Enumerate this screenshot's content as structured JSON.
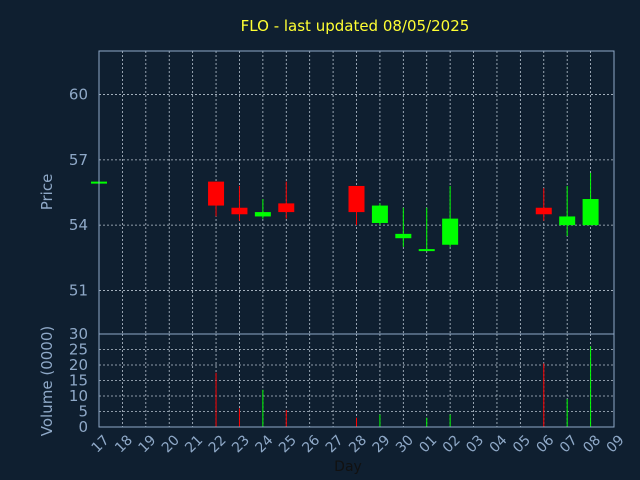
{
  "chart_data": {
    "type": "candlestick",
    "title": "FLO - last updated 08/05/2025",
    "xlabel": "Day",
    "price_panel": {
      "ylabel": "Price",
      "ylim": [
        49,
        62
      ],
      "yticks": [
        51,
        54,
        57,
        60
      ]
    },
    "volume_panel": {
      "ylabel": "Volume (0000)",
      "ylim": [
        0,
        30
      ],
      "yticks": [
        0,
        5,
        10,
        15,
        20,
        25,
        30
      ]
    },
    "categories": [
      "17",
      "18",
      "19",
      "20",
      "21",
      "22",
      "23",
      "24",
      "25",
      "26",
      "27",
      "28",
      "29",
      "30",
      "01",
      "02",
      "03",
      "04",
      "05",
      "06",
      "07",
      "08",
      "09"
    ],
    "candles": [
      {
        "day": "17",
        "open": 56.0,
        "close": 56.0,
        "high": 56.0,
        "low": 56.0,
        "volume": 0
      },
      {
        "day": "22",
        "open": 56.0,
        "close": 54.9,
        "high": 56.0,
        "low": 54.4,
        "volume": 17.5
      },
      {
        "day": "23",
        "open": 54.8,
        "close": 54.5,
        "high": 55.8,
        "low": 54.2,
        "volume": 6
      },
      {
        "day": "24",
        "open": 54.4,
        "close": 54.6,
        "high": 55.2,
        "low": 54.3,
        "volume": 12
      },
      {
        "day": "25",
        "open": 55.0,
        "close": 54.6,
        "high": 56.0,
        "low": 54.3,
        "volume": 5.5
      },
      {
        "day": "28",
        "open": 55.8,
        "close": 54.6,
        "high": 55.8,
        "low": 54.0,
        "volume": 3
      },
      {
        "day": "29",
        "open": 54.1,
        "close": 54.9,
        "high": 55.0,
        "low": 54.0,
        "volume": 4
      },
      {
        "day": "30",
        "open": 53.4,
        "close": 53.6,
        "high": 54.8,
        "low": 53.0,
        "volume": 0
      },
      {
        "day": "01",
        "open": 52.9,
        "close": 52.9,
        "high": 54.8,
        "low": 52.9,
        "volume": 3
      },
      {
        "day": "02",
        "open": 53.1,
        "close": 54.3,
        "high": 55.8,
        "low": 53.0,
        "volume": 4
      },
      {
        "day": "06",
        "open": 54.8,
        "close": 54.5,
        "high": 55.7,
        "low": 54.2,
        "volume": 20.5
      },
      {
        "day": "07",
        "open": 54.0,
        "close": 54.4,
        "high": 55.8,
        "low": 53.5,
        "volume": 9
      },
      {
        "day": "08",
        "open": 54.0,
        "close": 55.2,
        "high": 56.4,
        "low": 54.0,
        "volume": 26
      }
    ],
    "colors": {
      "up": "#00ff00",
      "down": "#ff0000",
      "background": "#0f1f30",
      "text": "#8fa9c8",
      "title": "#ffff33"
    },
    "grid": true
  }
}
